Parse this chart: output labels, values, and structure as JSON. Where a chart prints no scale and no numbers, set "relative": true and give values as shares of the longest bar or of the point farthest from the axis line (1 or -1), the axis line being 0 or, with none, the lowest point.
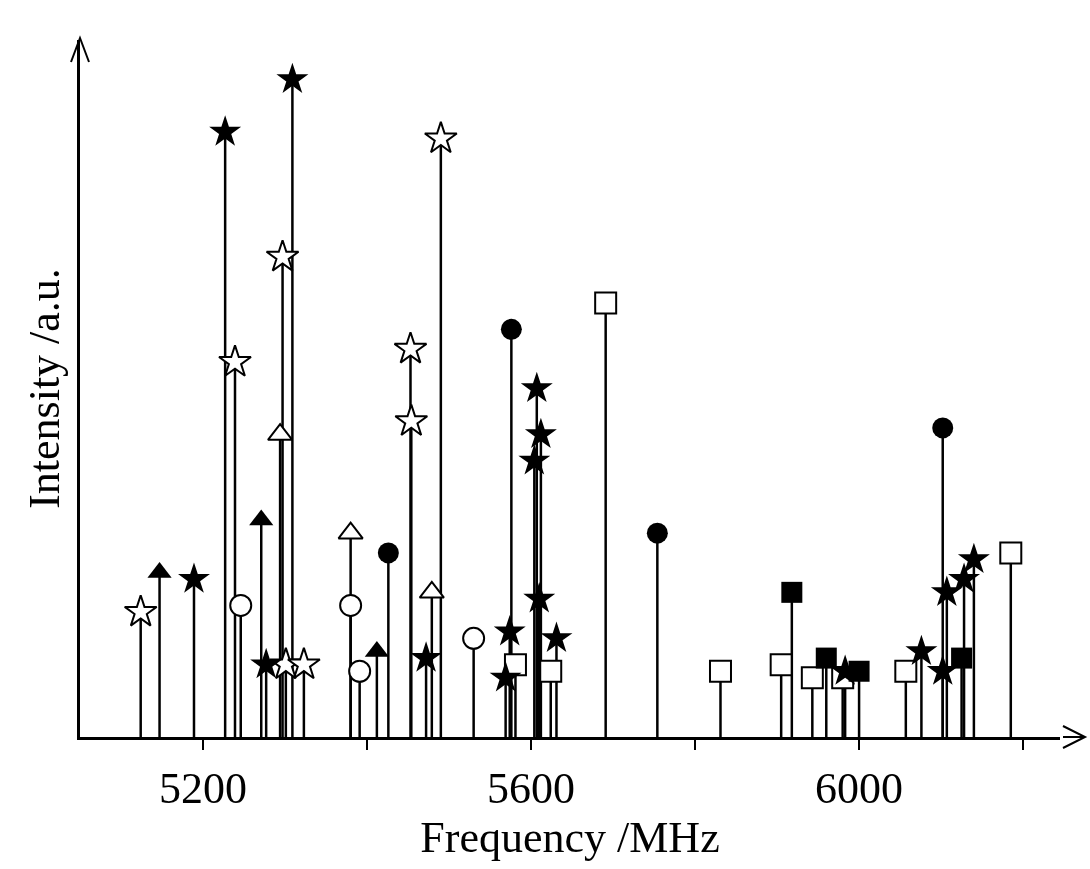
{
  "chart_data": {
    "type": "lollipop",
    "xlabel": "Frequency /MHz",
    "ylabel": "Intensity /a.u.",
    "relative": true,
    "xlim": [
      5050,
      6245
    ],
    "xticks": [
      5200,
      {
        "value": 5400,
        "label": null
      },
      5600,
      {
        "value": 5800,
        "label": null
      },
      6000,
      {
        "value": 6200,
        "label": null
      }
    ],
    "grid": false,
    "tick_labels": "x",
    "series": [
      {
        "color": "#000000",
        "marker": "star",
        "x": [
          5189,
          5227,
          5309,
          5277,
          5472,
          5574,
          5569,
          5607,
          5612,
          5604,
          5610,
          5631,
          5983,
          6076,
          6102,
          6107,
          6128,
          6140
        ],
        "values": [
          0.24,
          0.92,
          1,
          0.11,
          0.12,
          0.16,
          0.09,
          0.53,
          0.46,
          0.42,
          0.21,
          0.15,
          0.1,
          0.13,
          0.1,
          0.22,
          0.24,
          0.27
        ]
      },
      {
        "color": "#000000",
        "marker": "star-open",
        "x": [
          5124,
          5239,
          5297,
          5301,
          5323,
          5453,
          5454,
          5490
        ],
        "values": [
          0.19,
          0.57,
          0.73,
          0.11,
          0.11,
          0.59,
          0.48,
          0.91
        ]
      },
      {
        "color": "#000000",
        "marker": "triangle",
        "x": [
          5147,
          5271,
          5412
        ],
        "values": [
          0.25,
          0.33,
          0.13
        ]
      },
      {
        "color": "#000000",
        "marker": "triangle-open",
        "x": [
          5294,
          5380,
          5479
        ],
        "values": [
          0.46,
          0.31,
          0.22
        ]
      },
      {
        "color": "#000000",
        "marker": "circle",
        "x": [
          5426,
          5576,
          5754,
          6102
        ],
        "values": [
          0.28,
          0.62,
          0.31,
          0.47
        ]
      },
      {
        "color": "#000000",
        "marker": "circle-open",
        "x": [
          5246,
          5380,
          5391,
          5530
        ],
        "values": [
          0.2,
          0.2,
          0.1,
          0.15
        ]
      },
      {
        "color": "#000000",
        "marker": "square",
        "x": [
          5918,
          5960,
          6000,
          6125
        ],
        "values": [
          0.22,
          0.12,
          0.1,
          0.12
        ]
      },
      {
        "color": "#000000",
        "marker": "square-open",
        "x": [
          5581,
          5624,
          5691,
          5831,
          5905,
          5943,
          5980,
          6057,
          6185
        ],
        "values": [
          0.11,
          0.1,
          0.66,
          0.1,
          0.11,
          0.09,
          0.09,
          0.1,
          0.28
        ]
      }
    ]
  }
}
